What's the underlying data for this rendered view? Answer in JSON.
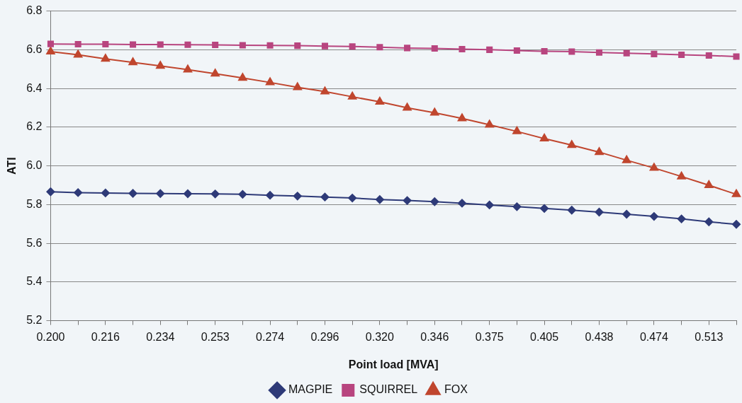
{
  "chart_data": {
    "type": "line",
    "xlabel": "Point load [MVA]",
    "ylabel": "ATI",
    "categories": [
      "0.200",
      null,
      "0.216",
      null,
      "0.234",
      null,
      "0.253",
      null,
      "0.274",
      null,
      "0.296",
      null,
      "0.320",
      null,
      "0.346",
      null,
      "0.375",
      null,
      "0.405",
      null,
      "0.438",
      null,
      "0.474",
      null,
      "0.513",
      null
    ],
    "series": [
      {
        "name": "MAGPIE",
        "color": "#2e3a78",
        "marker": "diamond",
        "values": [
          5.866,
          5.862,
          5.86,
          5.858,
          5.857,
          5.856,
          5.855,
          5.853,
          5.848,
          5.844,
          5.839,
          5.834,
          5.826,
          5.821,
          5.815,
          5.807,
          5.798,
          5.789,
          5.78,
          5.771,
          5.761,
          5.75,
          5.739,
          5.726,
          5.711,
          5.698
        ]
      },
      {
        "name": "SQUIRREL",
        "color": "#b8457f",
        "marker": "square",
        "values": [
          6.63,
          6.629,
          6.629,
          6.627,
          6.627,
          6.626,
          6.625,
          6.623,
          6.622,
          6.621,
          6.619,
          6.617,
          6.613,
          6.609,
          6.607,
          6.603,
          6.6,
          6.596,
          6.592,
          6.59,
          6.586,
          6.582,
          6.578,
          6.574,
          6.57,
          6.565
        ]
      },
      {
        "name": "FOX",
        "color": "#c0462e",
        "marker": "triangle",
        "values": [
          6.59,
          6.574,
          6.553,
          6.535,
          6.516,
          6.497,
          6.476,
          6.454,
          6.431,
          6.406,
          6.384,
          6.357,
          6.331,
          6.3,
          6.274,
          6.245,
          6.212,
          6.178,
          6.141,
          6.107,
          6.071,
          6.029,
          5.989,
          5.945,
          5.9,
          5.853
        ]
      }
    ],
    "ylim": [
      5.2,
      6.8
    ],
    "yticks": [
      5.2,
      5.4,
      5.6,
      5.8,
      {
        "value": 6.0,
        "label": "6.0"
      },
      6.2,
      6.4,
      6.6,
      6.8
    ],
    "grid": "y",
    "legend": "bottom",
    "line_style": "solid"
  }
}
